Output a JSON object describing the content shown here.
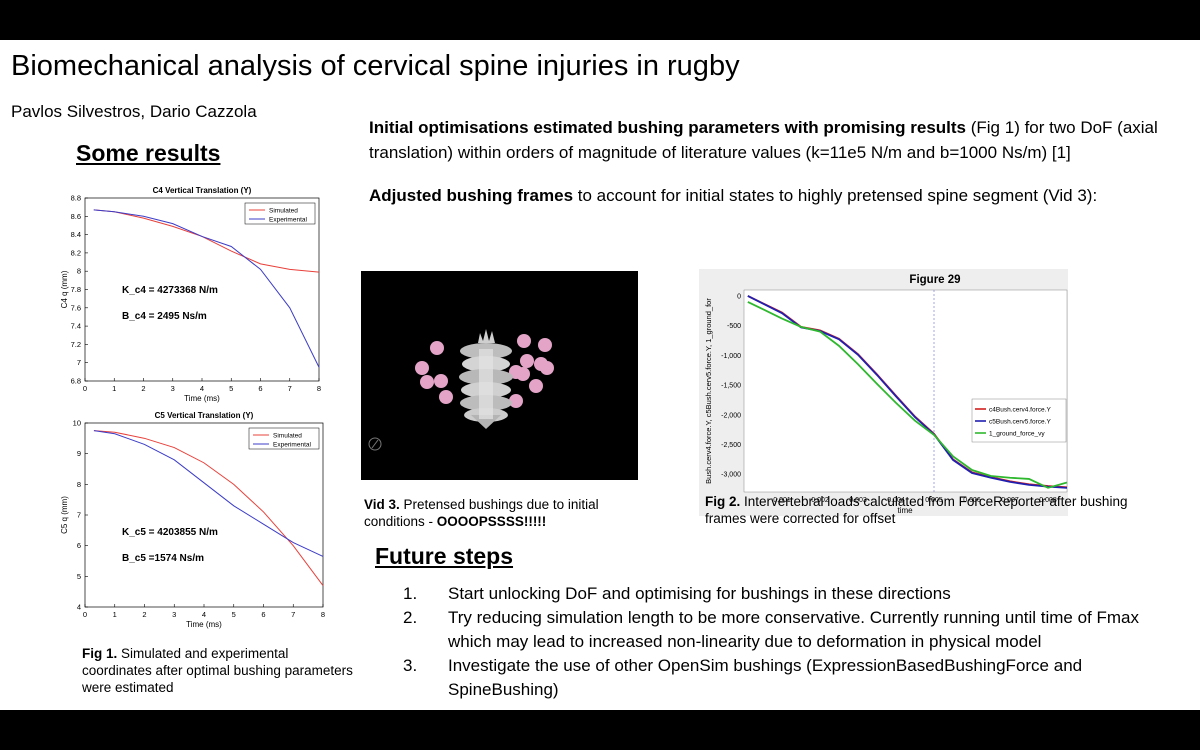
{
  "title": "Biomechanical analysis of cervical spine injuries in rugby",
  "authors": "Pavlos Silvestros, Dario Cazzola",
  "some_results": "Some results",
  "intro": {
    "p1_bold": "Initial optimisations estimated bushing parameters with promising results",
    "p1_rest": " (Fig 1) for two DoF (axial translation) within orders of magnitude of literature values (k=11e5 N/m and b=1000 Ns/m) [1]",
    "p2_bold": "Adjusted bushing frames",
    "p2_rest": " to account for initial states to highly pretensed spine segment (Vid 3):"
  },
  "fig1": {
    "label": "Fig 1.",
    "text": " Simulated and experimental coordinates after optimal bushing parameters were estimated"
  },
  "vid3": {
    "label": "Vid 3.",
    "text": " Pretensed bushings due to initial conditions - ",
    "shout": "OOOOPSSSS!!!!!"
  },
  "fig2": {
    "label": "Fig 2.",
    "text": " Intervertebral loads calculated from ForceReporter after bushing frames were corrected for offset"
  },
  "future": {
    "heading": "Future steps",
    "items": [
      {
        "num": "1.",
        "text": "Start unlocking DoF and optimising for bushings in these directions"
      },
      {
        "num": "2.",
        "text": "Try reducing simulation length to be more conservative. Currently running until time of Fmax which may lead to increased non-linearity due to deformation in physical model"
      },
      {
        "num": "3.",
        "text": "Investigate the use of other OpenSim bushings (ExpressionBasedBushingForce and SpineBushing)"
      }
    ]
  },
  "chart_data": [
    {
      "type": "line",
      "title": "C4 Vertical Translation (Y)",
      "xlabel": "Time (ms)",
      "ylabel": "C4 q (mm)",
      "xlim": [
        0,
        8
      ],
      "ylim": [
        6.8,
        8.8
      ],
      "xticks": [
        "0",
        "1",
        "2",
        "3",
        "4",
        "5",
        "6",
        "7",
        "8"
      ],
      "yticks": [
        "6.8",
        "7",
        "7.2",
        "7.4",
        "7.6",
        "7.8",
        "8",
        "8.2",
        "8.4",
        "8.6",
        "8.8"
      ],
      "legend": "top-right",
      "annotations": [
        "K_c4 = 4273368 N/m",
        "B_c4 = 2495 Ns/m"
      ],
      "x": [
        0.3,
        1,
        2,
        3,
        4,
        5,
        6,
        7,
        8
      ],
      "series": [
        {
          "name": "Simulated",
          "color": "#e8403a",
          "values": [
            8.67,
            8.65,
            8.58,
            8.49,
            8.38,
            8.22,
            8.08,
            8.02,
            7.99
          ]
        },
        {
          "name": "Experimental",
          "color": "#3c3cc8",
          "values": [
            8.67,
            8.65,
            8.6,
            8.52,
            8.38,
            8.27,
            8.02,
            7.6,
            6.95
          ]
        }
      ]
    },
    {
      "type": "line",
      "title": "C5 Vertical Translation (Y)",
      "xlabel": "Time (ms)",
      "ylabel": "C5 q (mm)",
      "xlim": [
        0,
        8
      ],
      "ylim": [
        4,
        10
      ],
      "xticks": [
        "0",
        "1",
        "2",
        "3",
        "4",
        "5",
        "6",
        "7",
        "8"
      ],
      "yticks": [
        "4",
        "5",
        "6",
        "7",
        "8",
        "9",
        "10"
      ],
      "legend": "top-right",
      "annotations": [
        "K_c5 = 4203855 N/m",
        "B_c5 =1574 Ns/m"
      ],
      "x": [
        0.3,
        1,
        2,
        3,
        4,
        5,
        6,
        7,
        8
      ],
      "series": [
        {
          "name": "Simulated",
          "color": "#e8403a",
          "values": [
            9.75,
            9.7,
            9.5,
            9.2,
            8.7,
            8.0,
            7.1,
            6.0,
            4.7
          ]
        },
        {
          "name": "Experimental",
          "color": "#3c3cc8",
          "values": [
            9.75,
            9.65,
            9.3,
            8.8,
            8.05,
            7.3,
            6.7,
            6.1,
            5.65
          ]
        }
      ]
    },
    {
      "type": "line",
      "title": "Figure 29",
      "xlabel": "time",
      "ylabel": "Bush.cerv4.force.Y, c5Bush.cerv5.force.Y, 1_ground_for",
      "xlim": [
        0,
        0.0085
      ],
      "ylim": [
        -3300,
        100
      ],
      "xticks": [
        "0.001",
        "0.002",
        "0.003",
        "0.004",
        "0.005",
        "0.006",
        "0.007",
        "0.008"
      ],
      "yticks": [
        "0",
        "-500",
        "-1,000",
        "-1,500",
        "-2,000",
        "-2,500",
        "-3,000"
      ],
      "legend": "right",
      "x": [
        0.0001,
        0.001,
        0.0015,
        0.002,
        0.0025,
        0.003,
        0.0035,
        0.004,
        0.0045,
        0.005,
        0.0055,
        0.006,
        0.0065,
        0.007,
        0.0075,
        0.008,
        0.0085
      ],
      "series": [
        {
          "name": "c4Bush.cerv4.force.Y",
          "color": "#d02020",
          "values": [
            0,
            -280,
            -520,
            -580,
            -720,
            -980,
            -1320,
            -1680,
            -2030,
            -2320,
            -2750,
            -2970,
            -3050,
            -3120,
            -3170,
            -3200,
            -3220
          ]
        },
        {
          "name": "c5Bush.cerv5.force.Y",
          "color": "#2020b0",
          "values": [
            0,
            -290,
            -530,
            -590,
            -730,
            -990,
            -1330,
            -1690,
            -2040,
            -2330,
            -2760,
            -2980,
            -3060,
            -3130,
            -3180,
            -3210,
            -3230
          ]
        },
        {
          "name": "1_ground_force_vy",
          "color": "#2eb82e",
          "values": [
            -100,
            -380,
            -520,
            -600,
            -840,
            -1150,
            -1480,
            -1800,
            -2100,
            -2340,
            -2700,
            -2930,
            -3030,
            -3060,
            -3080,
            -3230,
            -3140
          ]
        }
      ]
    }
  ]
}
